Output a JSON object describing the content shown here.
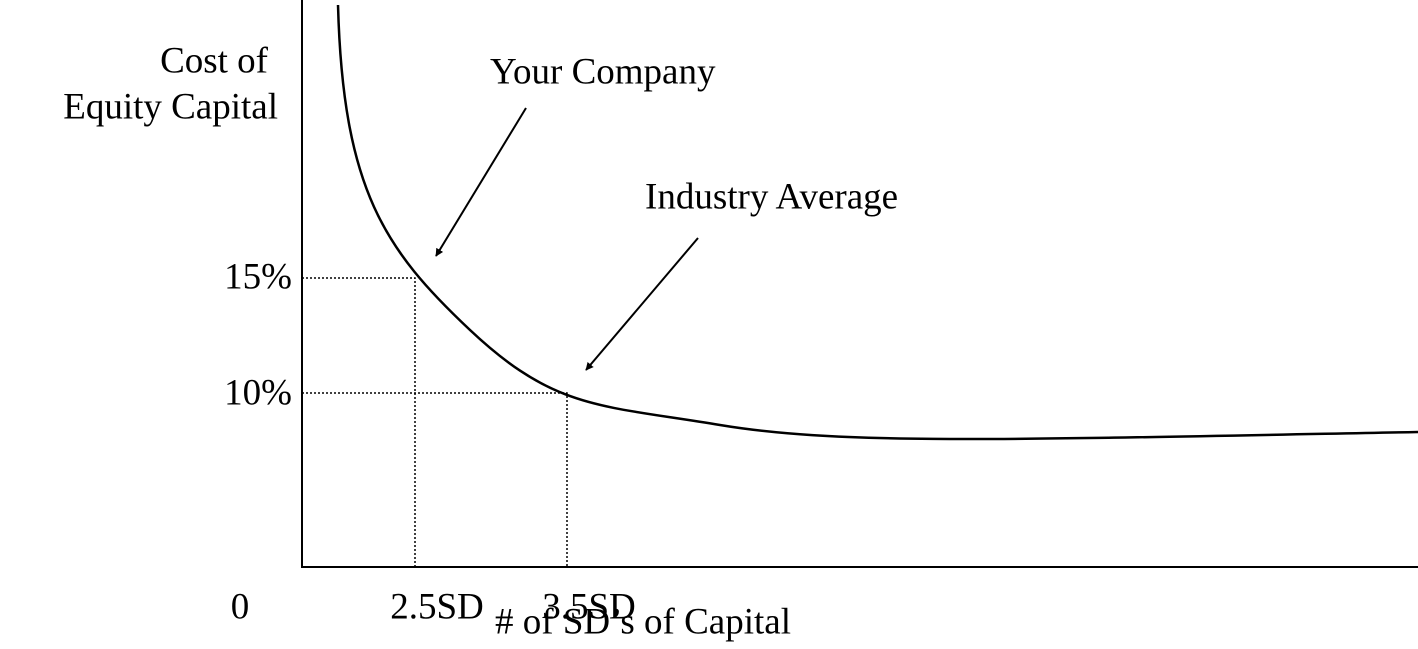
{
  "diagram": {
    "y_axis_title": [
      "Cost of",
      "Equity Capital"
    ],
    "x_axis_title": "# of SD’s of Capital",
    "y_labels": [
      "15%",
      "10%"
    ],
    "x_labels": [
      "0",
      "2.5SD",
      "3.5SD"
    ],
    "annotations": [
      "Your Company",
      "Industry Average"
    ]
  }
}
